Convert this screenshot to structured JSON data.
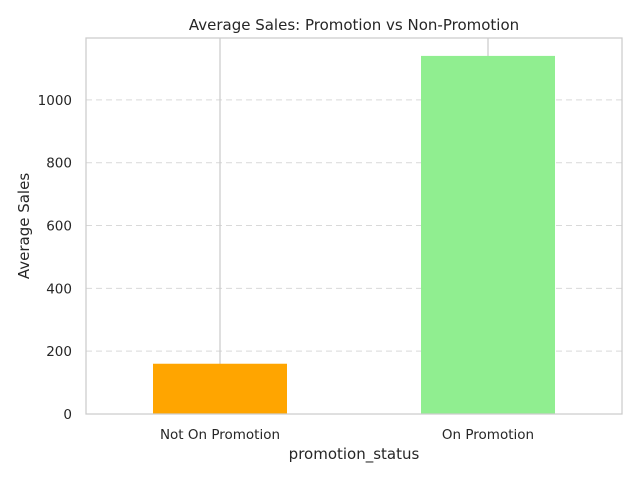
{
  "chart_data": {
    "type": "bar",
    "title": "Average Sales: Promotion vs Non-Promotion",
    "xlabel": "promotion_status",
    "ylabel": "Average Sales",
    "categories": [
      "Not On Promotion",
      "On Promotion"
    ],
    "values": [
      160,
      1140
    ],
    "colors": [
      "#FFA500",
      "#90EE90"
    ],
    "ylim": [
      0,
      1197
    ],
    "yticks": [
      0,
      200,
      400,
      600,
      800,
      1000
    ],
    "grid": "y-dashed",
    "legend": "none"
  }
}
